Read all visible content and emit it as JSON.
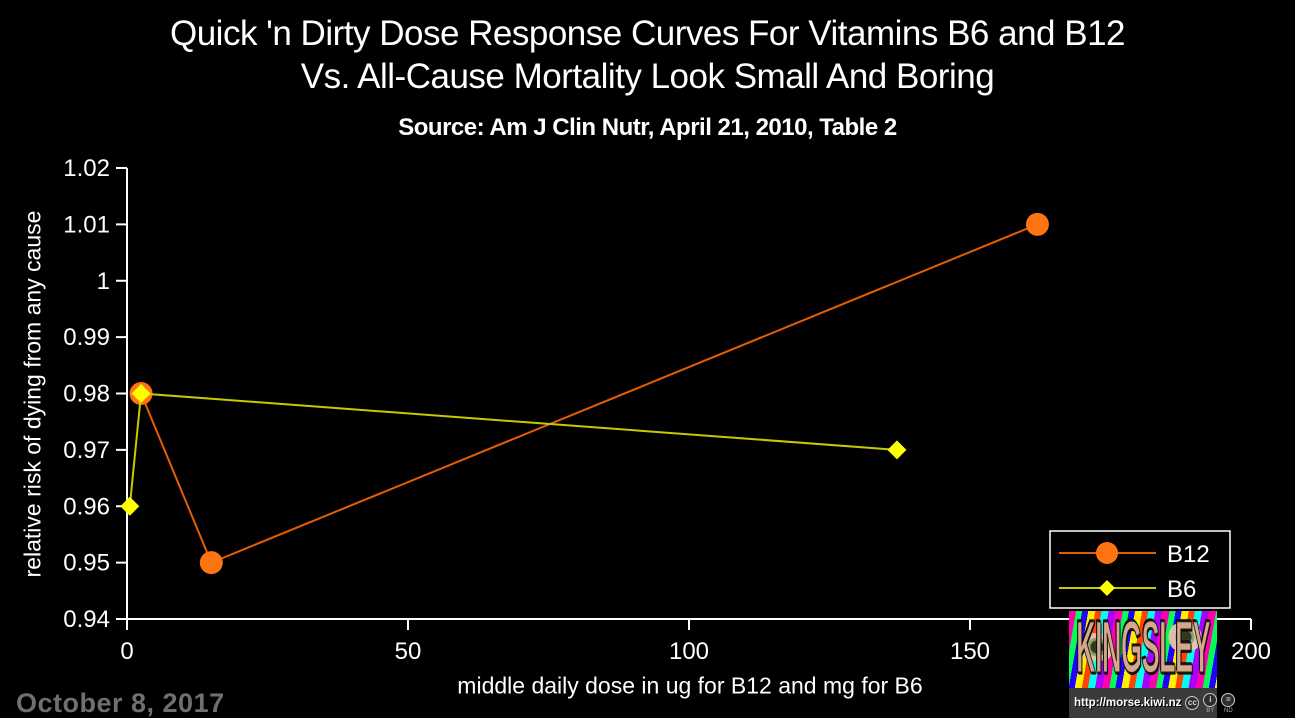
{
  "page": {
    "background": "#000000",
    "date_label": "October 8, 2017",
    "date_color": "#6f6f6f"
  },
  "chart_data": {
    "type": "line",
    "title": "Quick 'n Dirty Dose Response Curves For Vitamins B6 and B12 Vs. All-Cause Mortality Look Small And Boring",
    "title_lines": [
      "Quick 'n Dirty Dose Response Curves For Vitamins B6 and B12",
      "Vs. All-Cause Mortality Look Small And Boring"
    ],
    "subtitle": "Source: Am J Clin Nutr, April 21, 2010, Table 2",
    "xlabel": "middle daily dose in ug for B12 and mg for B6",
    "ylabel": "relative risk of dying from any cause",
    "xlim": [
      0,
      200
    ],
    "ylim": [
      0.94,
      1.02
    ],
    "x_ticks": [
      0,
      50,
      100,
      150,
      200
    ],
    "x_tick_labels": [
      "0",
      "50",
      "100",
      "150",
      "200"
    ],
    "y_ticks": [
      0.94,
      0.95,
      0.96,
      0.97,
      0.98,
      0.99,
      1.0,
      1.01,
      1.02
    ],
    "y_tick_labels": [
      "0.94",
      "0.95",
      "0.96",
      "0.97",
      "0.98",
      "0.99",
      "1",
      "1.01",
      "1.02"
    ],
    "grid": false,
    "legend_position": "bottom-right-inside",
    "axis_color": "#ffffff",
    "background_color": "#000000",
    "series": [
      {
        "name": "B12",
        "marker": "circle",
        "line_color": "#e25e00",
        "marker_color": "#ff7412",
        "points": [
          [
            2.5,
            0.98
          ],
          [
            15,
            0.95
          ],
          [
            162,
            1.01
          ]
        ]
      },
      {
        "name": "B6",
        "marker": "diamond",
        "line_color": "#c9c900",
        "marker_color": "#ffff00",
        "points": [
          [
            0.5,
            0.96
          ],
          [
            2.5,
            0.98
          ],
          [
            137,
            0.97
          ]
        ]
      }
    ]
  },
  "logo": {
    "text": "KINGSLEY",
    "url": "http://morse.kiwi.nz",
    "badges": [
      {
        "glyph": "cc",
        "label": ""
      },
      {
        "glyph": "i",
        "label": "BY"
      },
      {
        "glyph": "=",
        "label": "ND"
      }
    ]
  }
}
